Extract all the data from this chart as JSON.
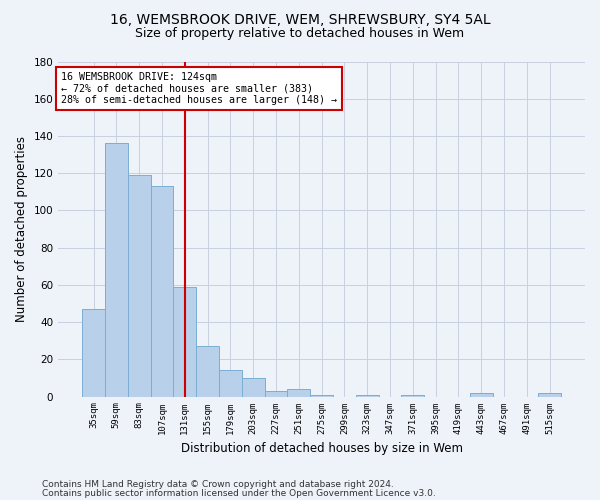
{
  "title1": "16, WEMSBROOK DRIVE, WEM, SHREWSBURY, SY4 5AL",
  "title2": "Size of property relative to detached houses in Wem",
  "xlabel": "Distribution of detached houses by size in Wem",
  "ylabel": "Number of detached properties",
  "categories": [
    "35sqm",
    "59sqm",
    "83sqm",
    "107sqm",
    "131sqm",
    "155sqm",
    "179sqm",
    "203sqm",
    "227sqm",
    "251sqm",
    "275sqm",
    "299sqm",
    "323sqm",
    "347sqm",
    "371sqm",
    "395sqm",
    "419sqm",
    "443sqm",
    "467sqm",
    "491sqm",
    "515sqm"
  ],
  "values": [
    47,
    136,
    119,
    113,
    59,
    27,
    14,
    10,
    3,
    4,
    1,
    0,
    1,
    0,
    1,
    0,
    0,
    2,
    0,
    0,
    2
  ],
  "bar_color": "#b8d0ea",
  "bar_edge_color": "#7aaed4",
  "bar_linewidth": 0.7,
  "ylim": [
    0,
    180
  ],
  "yticks": [
    0,
    20,
    40,
    60,
    80,
    100,
    120,
    140,
    160,
    180
  ],
  "vline_x_index": 4,
  "vline_color": "#cc0000",
  "annotation_line1": "16 WEMSBROOK DRIVE: 124sqm",
  "annotation_line2": "← 72% of detached houses are smaller (383)",
  "annotation_line3": "28% of semi-detached houses are larger (148) →",
  "annotation_box_color": "#ffffff",
  "annotation_box_edge": "#cc0000",
  "footer1": "Contains HM Land Registry data © Crown copyright and database right 2024.",
  "footer2": "Contains public sector information licensed under the Open Government Licence v3.0.",
  "background_color": "#eef2f9",
  "plot_bg_color": "#eef2f9",
  "grid_color": "#c8d0e0",
  "title1_fontsize": 10,
  "title2_fontsize": 9,
  "tick_fontsize": 6.5,
  "ylabel_fontsize": 8.5,
  "xlabel_fontsize": 8.5,
  "footer_fontsize": 6.5
}
